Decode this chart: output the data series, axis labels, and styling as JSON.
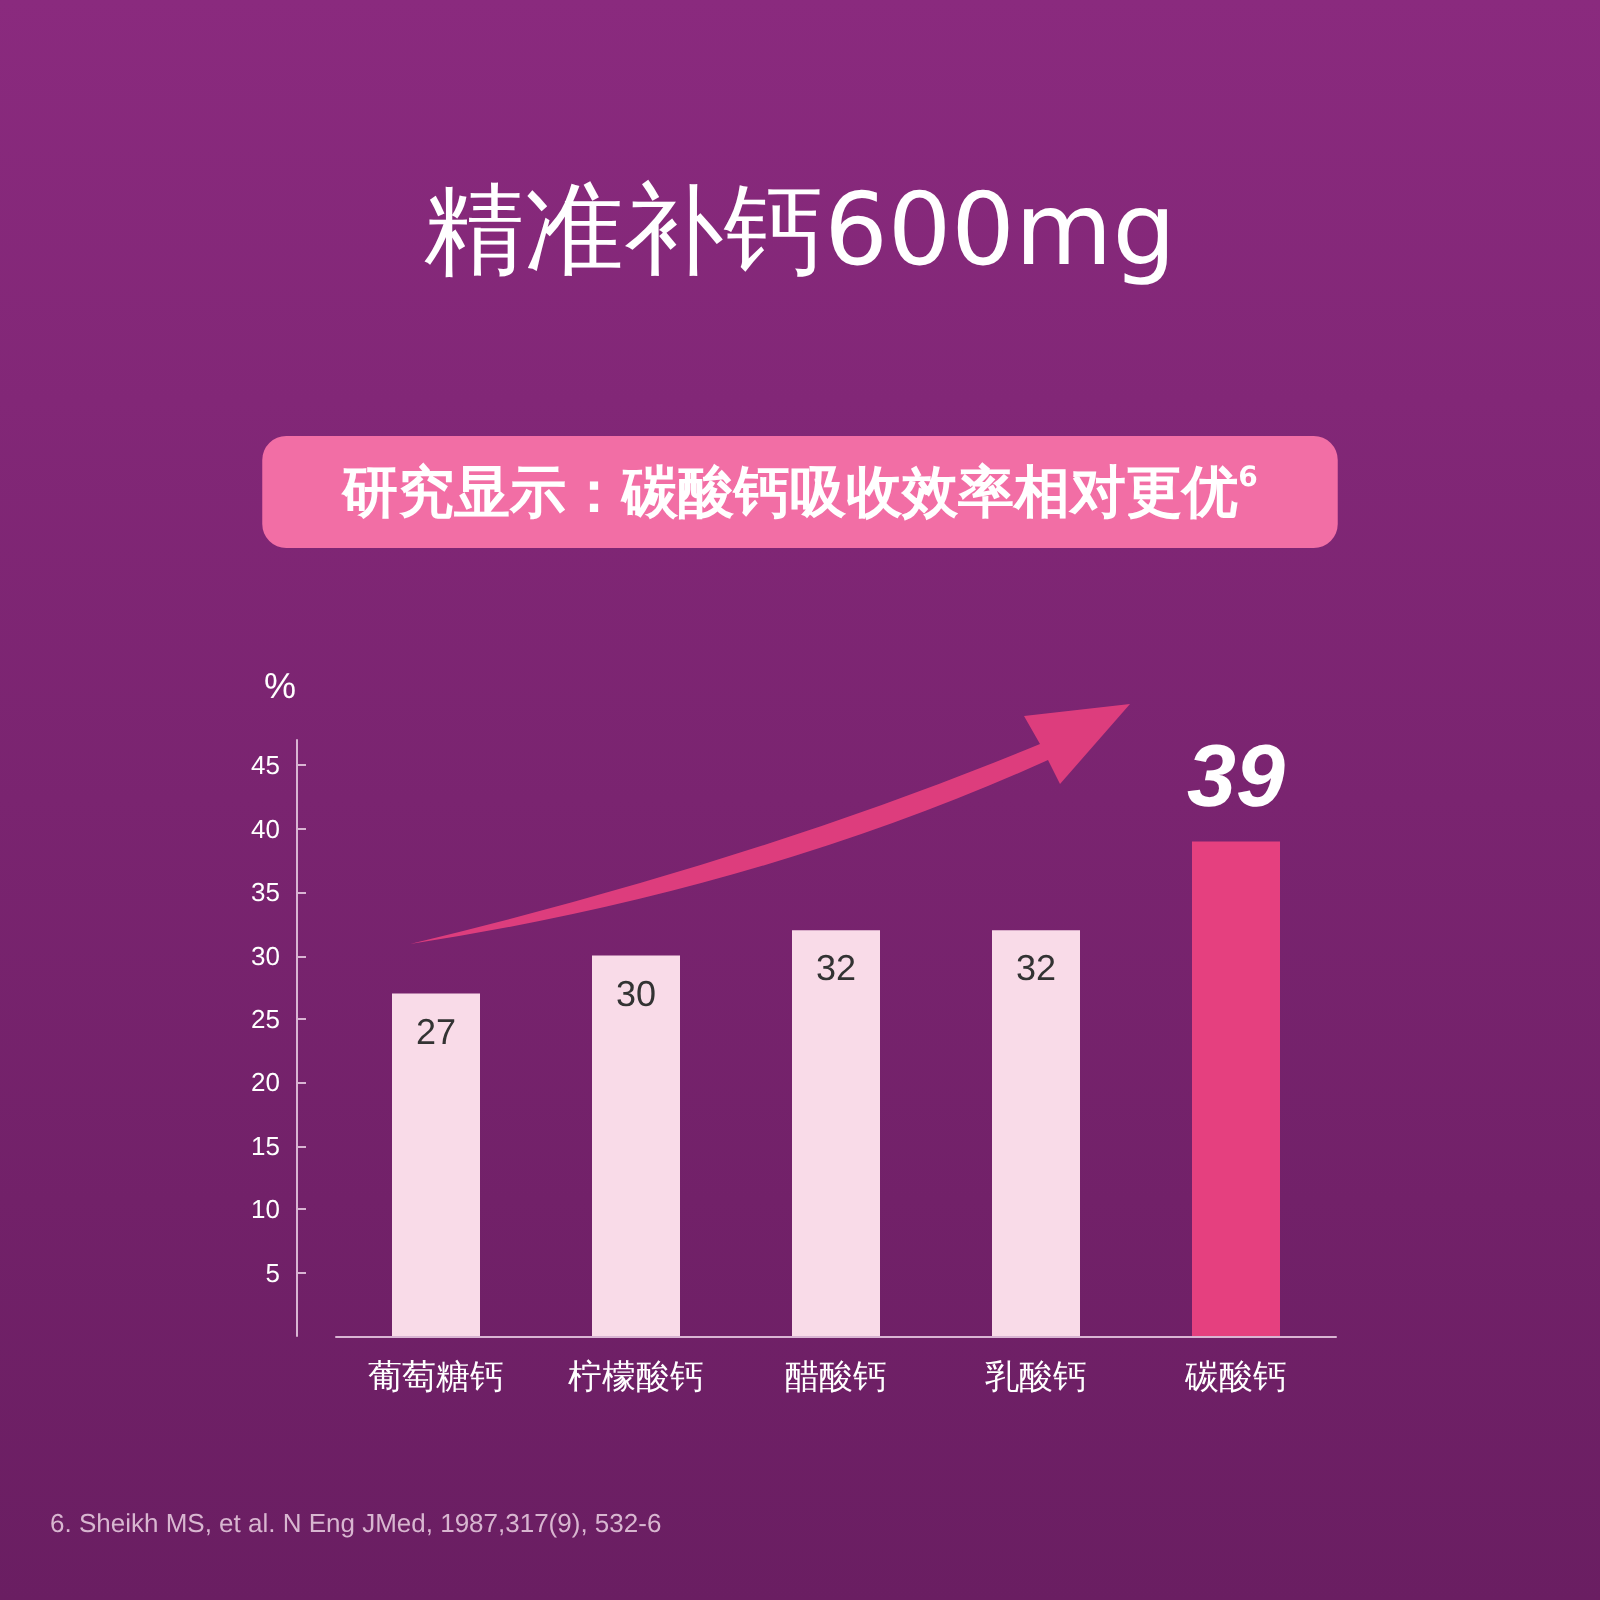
{
  "chart_data": {
    "type": "bar",
    "title": "精准补钙600mg",
    "subtitle": "研究显示：碳酸钙吸收效率相对更优$^{6}$",
    "ylabel": "%",
    "categories": [
      "葡萄糖钙",
      "柠檬酸钙",
      "醋酸钙",
      "乳酸钙",
      "碳酸钙"
    ],
    "values": [
      27,
      30,
      32,
      32,
      39
    ],
    "colors": [
      "#f9dbe8",
      "#f9dbe8",
      "#f9dbe8",
      "#f9dbe8",
      "#e5407f"
    ],
    "ylim": [
      0,
      47
    ],
    "yticks": [
      5,
      10,
      15,
      20,
      25,
      30,
      35,
      40,
      45
    ],
    "grid": false,
    "data_labels": true,
    "annotations": [
      "6. Sheikh MS, et al. N Eng JMed, 1987,317(9), 532-6"
    ]
  }
}
